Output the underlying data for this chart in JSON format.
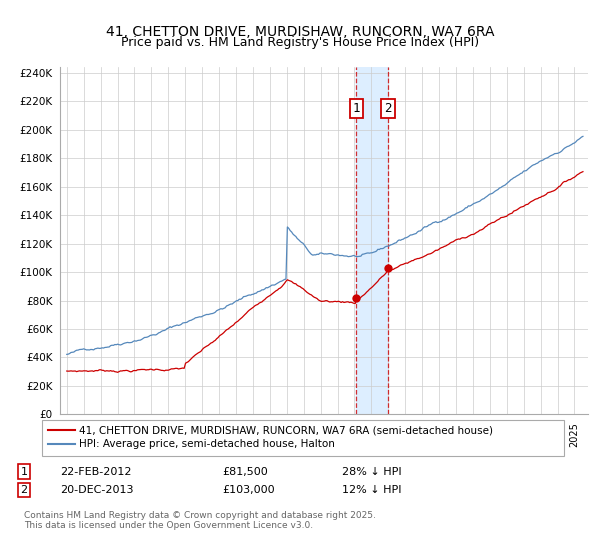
{
  "title": "41, CHETTON DRIVE, MURDISHAW, RUNCORN, WA7 6RA",
  "subtitle": "Price paid vs. HM Land Registry's House Price Index (HPI)",
  "ylabel_ticks": [
    "£0",
    "£20K",
    "£40K",
    "£60K",
    "£80K",
    "£100K",
    "£120K",
    "£140K",
    "£160K",
    "£180K",
    "£200K",
    "£220K",
    "£240K"
  ],
  "ytick_values": [
    0,
    20000,
    40000,
    60000,
    80000,
    100000,
    120000,
    140000,
    160000,
    180000,
    200000,
    220000,
    240000
  ],
  "ylim": [
    0,
    244000
  ],
  "legend_line1": "41, CHETTON DRIVE, MURDISHAW, RUNCORN, WA7 6RA (semi-detached house)",
  "legend_line2": "HPI: Average price, semi-detached house, Halton",
  "sale1_date": "22-FEB-2012",
  "sale1_price": "£81,500",
  "sale1_hpi": "28% ↓ HPI",
  "sale1_year": 2012.12,
  "sale1_value": 81500,
  "sale2_date": "20-DEC-2013",
  "sale2_price": "£103,000",
  "sale2_hpi": "12% ↓ HPI",
  "sale2_year": 2013.97,
  "sale2_value": 103000,
  "red_color": "#cc0000",
  "blue_color": "#5588bb",
  "shade_color": "#ddeeff",
  "footer": "Contains HM Land Registry data © Crown copyright and database right 2025.\nThis data is licensed under the Open Government Licence v3.0."
}
